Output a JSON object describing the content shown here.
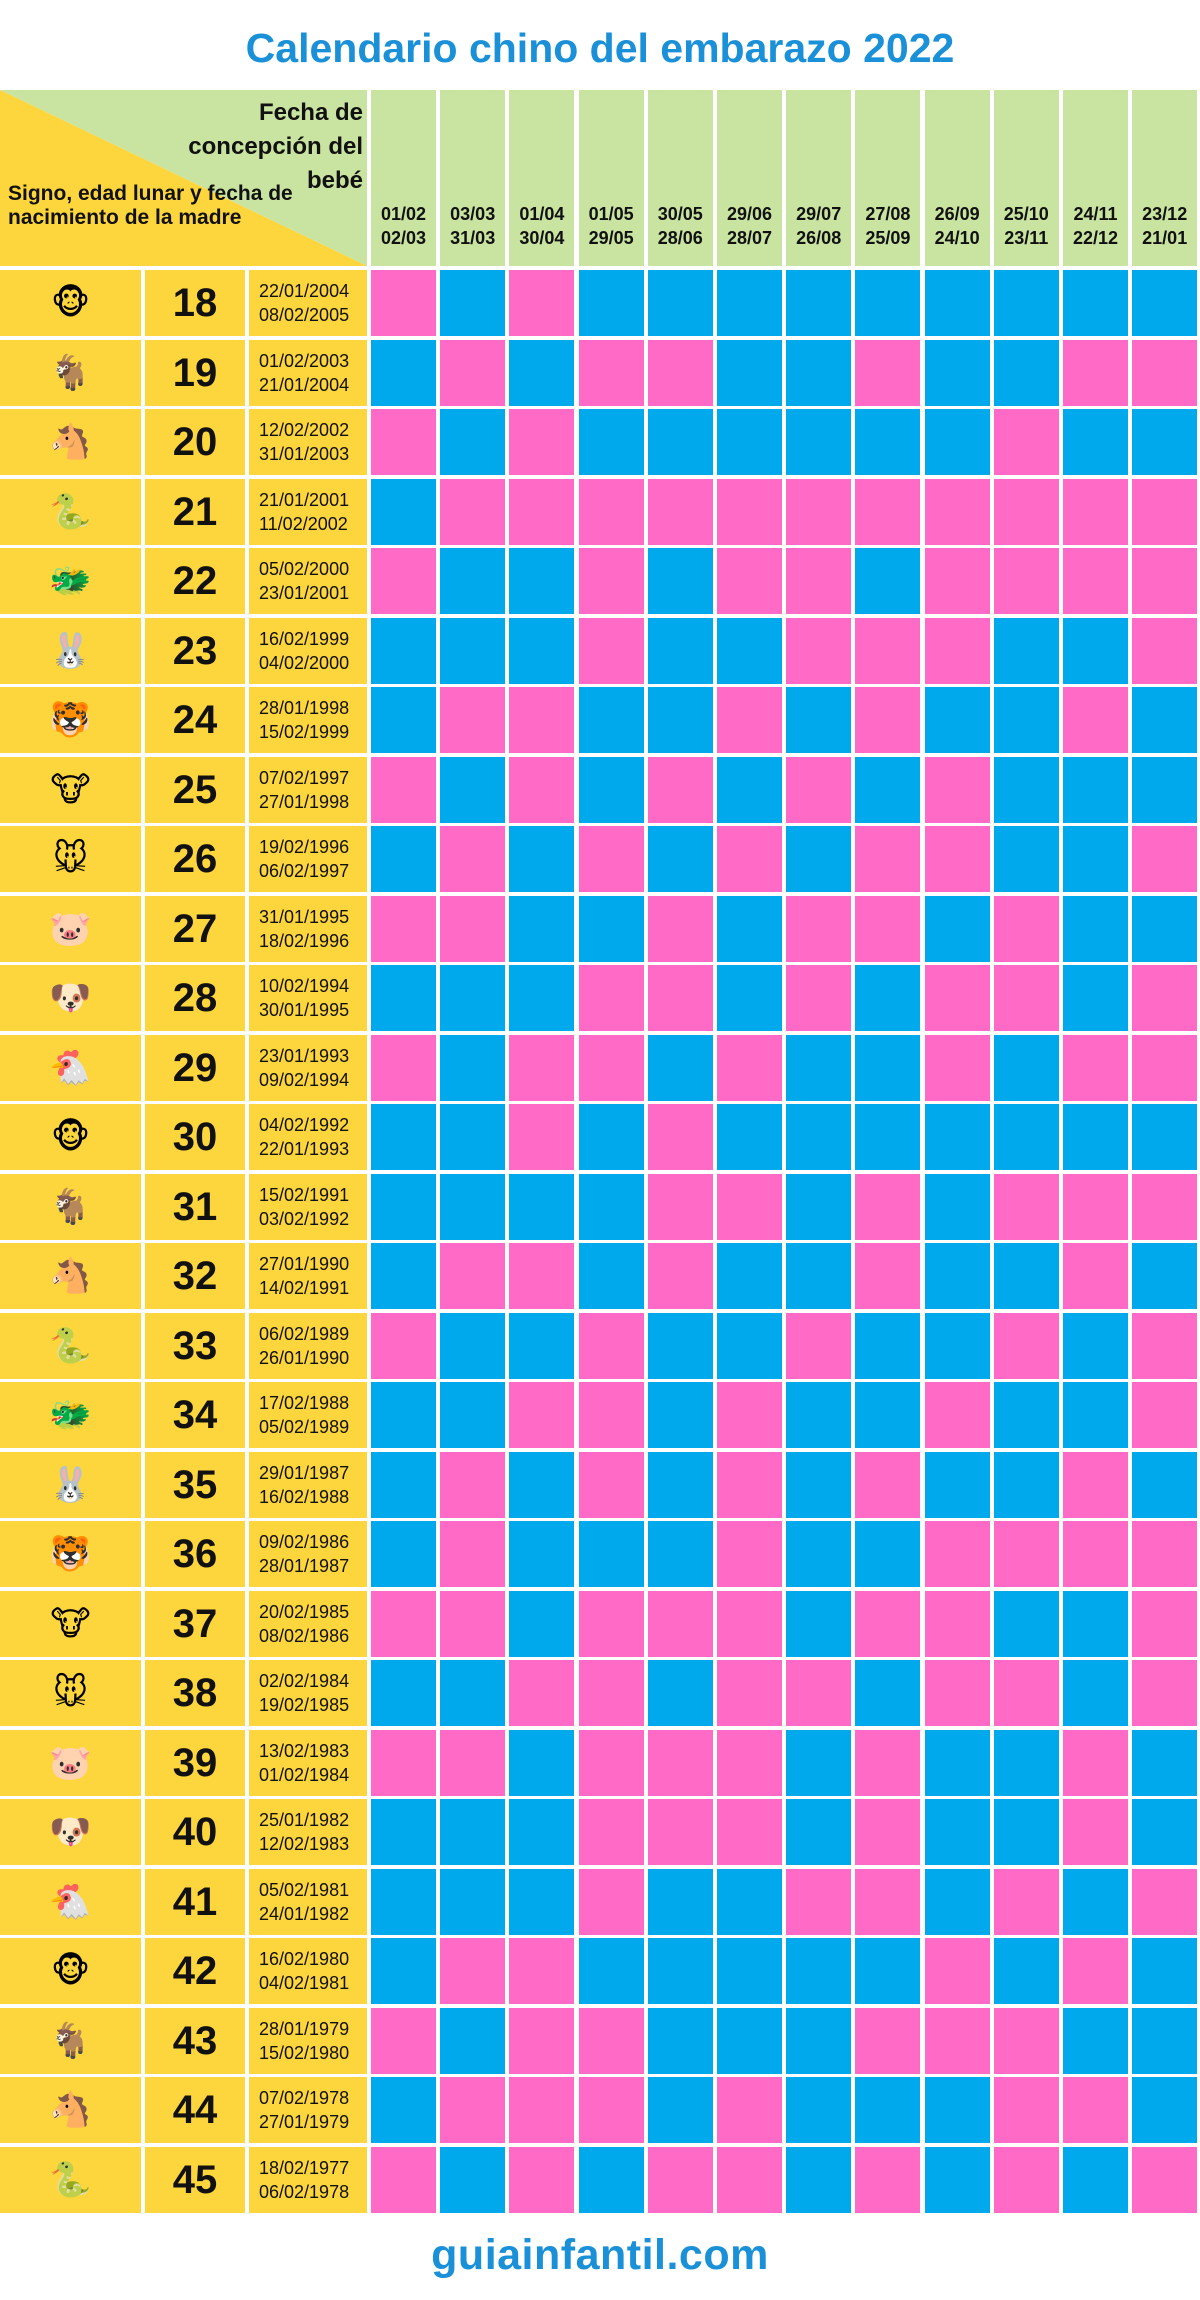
{
  "title": "Calendario chino del embarazo 2022",
  "header": {
    "conception_label": "Fecha de concepción del bebé",
    "mother_label": "Signo, edad lunar y fecha de nacimiento de la madre"
  },
  "colors": {
    "boy": "#00a8ec",
    "girl": "#ff6ac6",
    "yellow": "#fdd53c",
    "green": "#c9e3a0",
    "title": "#1a90d8"
  },
  "columns": [
    {
      "from": "01/02",
      "to": "02/03"
    },
    {
      "from": "03/03",
      "to": "31/03"
    },
    {
      "from": "01/04",
      "to": "30/04"
    },
    {
      "from": "01/05",
      "to": "29/05"
    },
    {
      "from": "30/05",
      "to": "28/06"
    },
    {
      "from": "29/06",
      "to": "28/07"
    },
    {
      "from": "29/07",
      "to": "26/08"
    },
    {
      "from": "27/08",
      "to": "25/09"
    },
    {
      "from": "26/09",
      "to": "24/10"
    },
    {
      "from": "25/10",
      "to": "23/11"
    },
    {
      "from": "24/11",
      "to": "22/12"
    },
    {
      "from": "23/12",
      "to": "21/01"
    }
  ],
  "rows": [
    {
      "sign": "🐵",
      "sign_icon": "monkey-icon",
      "age": "18",
      "from": "22/01/2004",
      "to": "08/02/2005",
      "cells": "GBGBBBBBBBBB"
    },
    {
      "sign": "🐐",
      "sign_icon": "goat-icon",
      "age": "19",
      "from": "01/02/2003",
      "to": "21/01/2004",
      "cells": "BGBGGBBGBBGG"
    },
    {
      "sign": "🐴",
      "sign_icon": "horse-icon",
      "age": "20",
      "from": "12/02/2002",
      "to": "31/01/2003",
      "cells": "GBGBBBBBBGBB"
    },
    {
      "sign": "🐍",
      "sign_icon": "snake-icon",
      "age": "21",
      "from": "21/01/2001",
      "to": "11/02/2002",
      "cells": "BGGGGGGGGGGG"
    },
    {
      "sign": "🐲",
      "sign_icon": "dragon-icon",
      "age": "22",
      "from": "05/02/2000",
      "to": "23/01/2001",
      "cells": "GBBGBGGBGGGG"
    },
    {
      "sign": "🐰",
      "sign_icon": "rabbit-icon",
      "age": "23",
      "from": "16/02/1999",
      "to": "04/02/2000",
      "cells": "BBBGBBGGGBBG"
    },
    {
      "sign": "🐯",
      "sign_icon": "tiger-icon",
      "age": "24",
      "from": "28/01/1998",
      "to": "15/02/1999",
      "cells": "BGGBBGBGBBGB"
    },
    {
      "sign": "🐮",
      "sign_icon": "ox-icon",
      "age": "25",
      "from": "07/02/1997",
      "to": "27/01/1998",
      "cells": "GBGBGBGBGBBB"
    },
    {
      "sign": "🐭",
      "sign_icon": "rat-icon",
      "age": "26",
      "from": "19/02/1996",
      "to": "06/02/1997",
      "cells": "BGBGBGBGGBBG"
    },
    {
      "sign": "🐷",
      "sign_icon": "pig-icon",
      "age": "27",
      "from": "31/01/1995",
      "to": "18/02/1996",
      "cells": "GGBBGBGGBGBB"
    },
    {
      "sign": "🐶",
      "sign_icon": "dog-icon",
      "age": "28",
      "from": "10/02/1994",
      "to": "30/01/1995",
      "cells": "BBBGGBGBGGBG"
    },
    {
      "sign": "🐔",
      "sign_icon": "rooster-icon",
      "age": "29",
      "from": "23/01/1993",
      "to": "09/02/1994",
      "cells": "GBGGBGBBGBGG"
    },
    {
      "sign": "🐵",
      "sign_icon": "monkey-icon",
      "age": "30",
      "from": "04/02/1992",
      "to": "22/01/1993",
      "cells": "BBGBGBBBBBBB"
    },
    {
      "sign": "🐐",
      "sign_icon": "goat-icon",
      "age": "31",
      "from": "15/02/1991",
      "to": "03/02/1992",
      "cells": "BBBBGGBGBGGG"
    },
    {
      "sign": "🐴",
      "sign_icon": "horse-icon",
      "age": "32",
      "from": "27/01/1990",
      "to": "14/02/1991",
      "cells": "BGGBGBBGBBGB"
    },
    {
      "sign": "🐍",
      "sign_icon": "snake-icon",
      "age": "33",
      "from": "06/02/1989",
      "to": "26/01/1990",
      "cells": "GBBGBBGBBGBG"
    },
    {
      "sign": "🐲",
      "sign_icon": "dragon-icon",
      "age": "34",
      "from": "17/02/1988",
      "to": "05/02/1989",
      "cells": "BBGGBGBBGBBG"
    },
    {
      "sign": "🐰",
      "sign_icon": "rabbit-icon",
      "age": "35",
      "from": "29/01/1987",
      "to": "16/02/1988",
      "cells": "BGBGBGBGBBGB"
    },
    {
      "sign": "🐯",
      "sign_icon": "tiger-icon",
      "age": "36",
      "from": "09/02/1986",
      "to": "28/01/1987",
      "cells": "BGBBBGBBGGGG"
    },
    {
      "sign": "🐮",
      "sign_icon": "ox-icon",
      "age": "37",
      "from": "20/02/1985",
      "to": "08/02/1986",
      "cells": "GGBGGGBGGBBG"
    },
    {
      "sign": "🐭",
      "sign_icon": "rat-icon",
      "age": "38",
      "from": "02/02/1984",
      "to": "19/02/1985",
      "cells": "BBGGBGGBGGBG"
    },
    {
      "sign": "🐷",
      "sign_icon": "pig-icon",
      "age": "39",
      "from": "13/02/1983",
      "to": "01/02/1984",
      "cells": "GGBGGGBGBBGB"
    },
    {
      "sign": "🐶",
      "sign_icon": "dog-icon",
      "age": "40",
      "from": "25/01/1982",
      "to": "12/02/1983",
      "cells": "BBBGGGBGBBGB"
    },
    {
      "sign": "🐔",
      "sign_icon": "rooster-icon",
      "age": "41",
      "from": "05/02/1981",
      "to": "24/01/1982",
      "cells": "BBBGBBGGBGBG"
    },
    {
      "sign": "🐵",
      "sign_icon": "monkey-icon",
      "age": "42",
      "from": "16/02/1980",
      "to": "04/02/1981",
      "cells": "BGGBBBBBGBGB"
    },
    {
      "sign": "🐐",
      "sign_icon": "goat-icon",
      "age": "43",
      "from": "28/01/1979",
      "to": "15/02/1980",
      "cells": "GBGGBBBGGGBB"
    },
    {
      "sign": "🐴",
      "sign_icon": "horse-icon",
      "age": "44",
      "from": "07/02/1978",
      "to": "27/01/1979",
      "cells": "BGGGBGBBBGGB"
    },
    {
      "sign": "🐍",
      "sign_icon": "snake-icon",
      "age": "45",
      "from": "18/02/1977",
      "to": "06/02/1978",
      "cells": "GBGBGGBGBGBG"
    }
  ],
  "footer": "guiainfantil.com"
}
